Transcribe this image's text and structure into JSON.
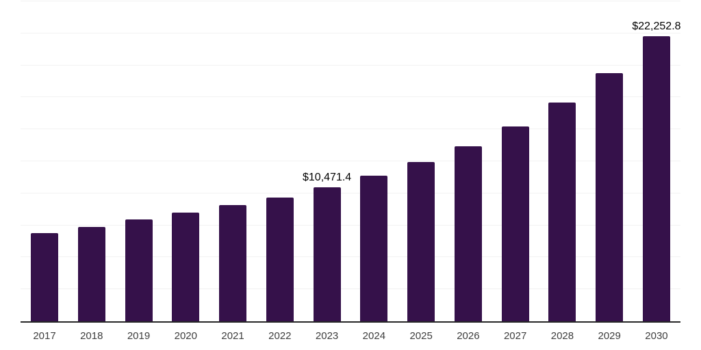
{
  "chart_data": {
    "type": "bar",
    "title": "",
    "xlabel": "",
    "ylabel": "",
    "categories": [
      "2017",
      "2018",
      "2019",
      "2020",
      "2021",
      "2022",
      "2023",
      "2024",
      "2025",
      "2026",
      "2027",
      "2028",
      "2029",
      "2030"
    ],
    "values": [
      6890,
      7390,
      7950,
      8520,
      9070,
      9690,
      10471.4,
      11370,
      12470,
      13660,
      15250,
      17070,
      19410,
      22252.8
    ],
    "ylim": [
      0,
      25000
    ],
    "grid_step": 2500,
    "grid": "horizontal",
    "legend_position": "none",
    "data_labels": [
      {
        "category": "2023",
        "label": "$10,471.4"
      },
      {
        "category": "2030",
        "label": "$22,252.8"
      }
    ],
    "colors": {
      "bar": "#35114A",
      "axis_line": "#262626",
      "gridline": "#F2F2F2",
      "tick_label": "#3D3D3D",
      "data_label": "#000000",
      "background": "#FFFFFF"
    }
  }
}
